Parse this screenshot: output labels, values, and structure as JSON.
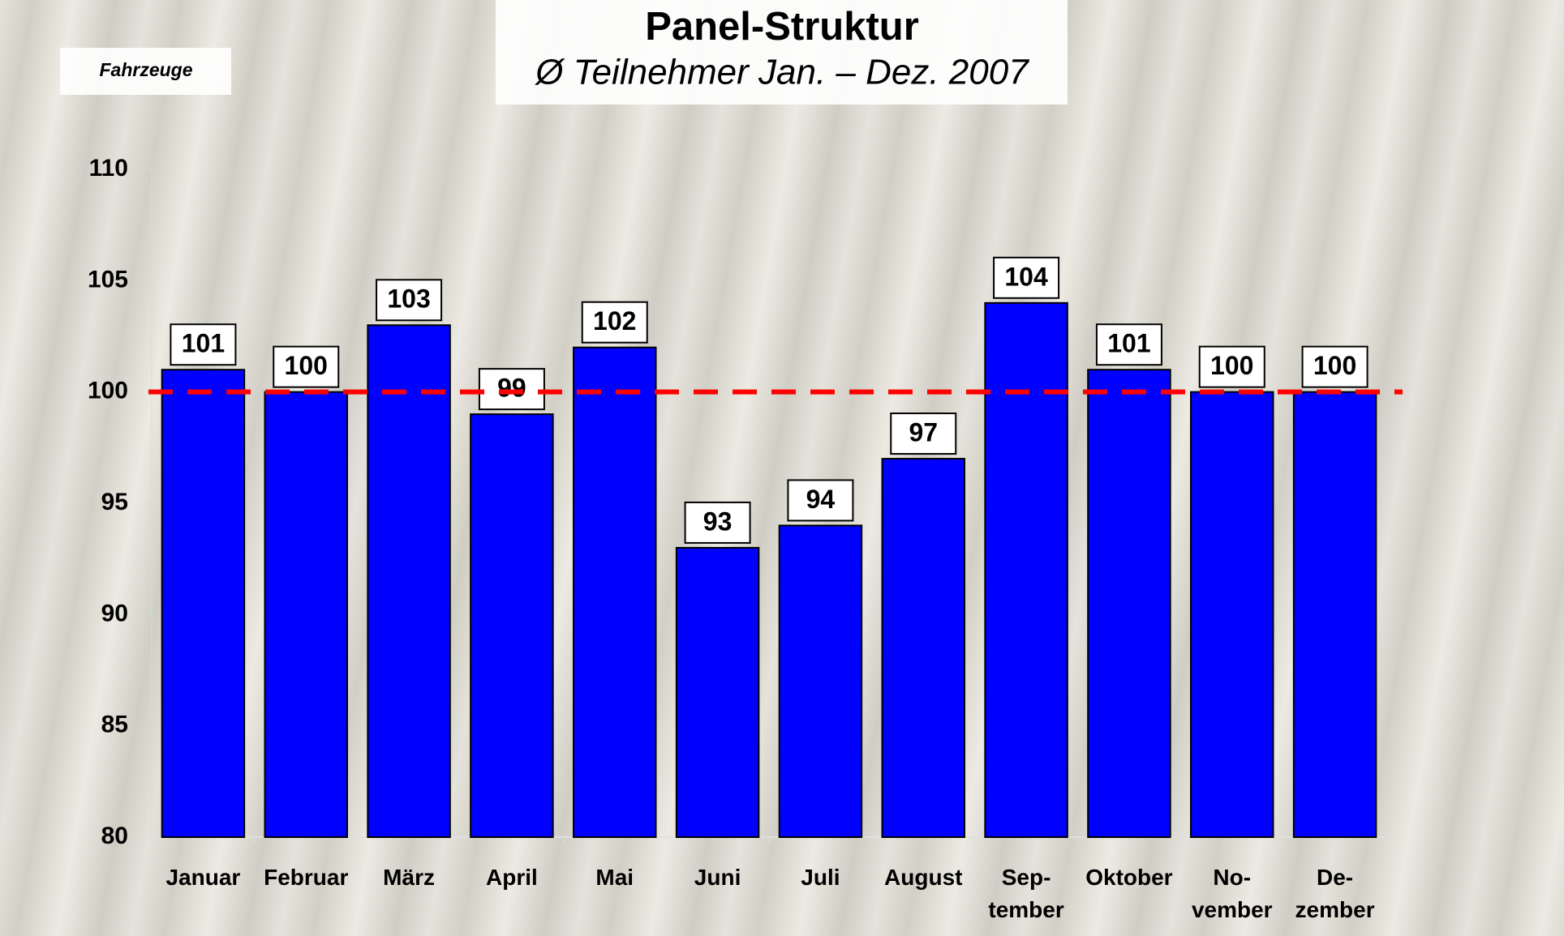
{
  "chart_data": {
    "type": "bar",
    "title": "Panel-Struktur",
    "subtitle": "Ø Teilnehmer Jan. – Dez. 2007",
    "y_label": "Fahrzeuge",
    "categories": [
      "Januar",
      "Februar",
      "März",
      "April",
      "Mai",
      "Juni",
      "Juli",
      "August",
      "Sep-\ntember",
      "Oktober",
      "No-\nvember",
      "De-\nzember"
    ],
    "values": [
      101,
      100,
      103,
      99,
      102,
      93,
      94,
      97,
      104,
      101,
      100,
      100
    ],
    "color": "#0000ff",
    "ylim": [
      80,
      110
    ],
    "yticks": [
      80,
      85,
      90,
      95,
      100,
      105,
      110
    ],
    "reference_line": {
      "value": 100,
      "color": "#ff0000"
    }
  }
}
